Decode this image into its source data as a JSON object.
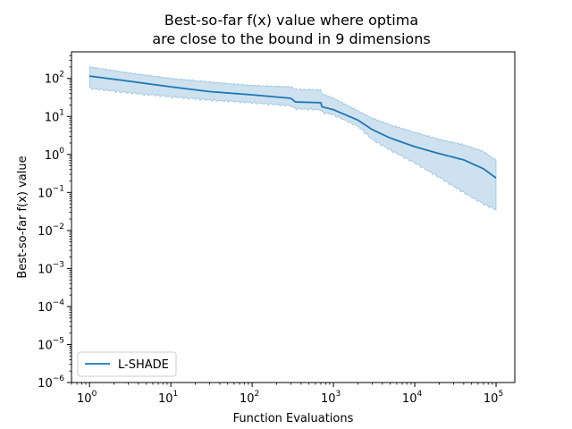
{
  "chart_data": {
    "type": "line",
    "title": [
      "Best-so-far f(x) value where optima",
      "are close to the bound in 9 dimensions"
    ],
    "xlabel": "Function Evaluations",
    "ylabel": "Best-so-far f(x) value",
    "xscale": "log",
    "yscale": "log",
    "xlim": [
      0.6,
      170000
    ],
    "ylim": [
      1e-06,
      500
    ],
    "x_ticks": [
      {
        "value": 1,
        "base": "10",
        "exp": "0"
      },
      {
        "value": 10,
        "base": "10",
        "exp": "1"
      },
      {
        "value": 100,
        "base": "10",
        "exp": "2"
      },
      {
        "value": 1000,
        "base": "10",
        "exp": "3"
      },
      {
        "value": 10000,
        "base": "10",
        "exp": "4"
      },
      {
        "value": 100000,
        "base": "10",
        "exp": "5"
      }
    ],
    "y_ticks": [
      {
        "value": 100,
        "base": "10",
        "exp": "2"
      },
      {
        "value": 10,
        "base": "10",
        "exp": "1"
      },
      {
        "value": 1,
        "base": "10",
        "exp": "0"
      },
      {
        "value": 0.1,
        "base": "10",
        "exp": "−1"
      },
      {
        "value": 0.01,
        "base": "10",
        "exp": "−2"
      },
      {
        "value": 0.001,
        "base": "10",
        "exp": "−3"
      },
      {
        "value": 0.0001,
        "base": "10",
        "exp": "−4"
      },
      {
        "value": 1e-05,
        "base": "10",
        "exp": "−5"
      },
      {
        "value": 1e-06,
        "base": "10",
        "exp": "−6"
      }
    ],
    "legend": {
      "placement": "lower-left",
      "entries": [
        "L-SHADE"
      ]
    },
    "grid": false,
    "series": [
      {
        "name": "L-SHADE",
        "color": "#1f77b4",
        "band_color": "#1f77b4",
        "x": [
          1,
          3,
          10,
          30,
          100,
          300,
          340,
          700,
          720,
          1000,
          2000,
          3000,
          5000,
          10000,
          20000,
          40000,
          70000,
          100000
        ],
        "y": [
          115,
          85,
          60,
          45,
          37,
          30,
          24,
          23,
          18,
          15,
          8,
          4.5,
          2.7,
          1.6,
          1.05,
          0.72,
          0.42,
          0.24
        ],
        "lower": [
          55,
          42,
          33,
          27,
          23,
          19,
          16,
          15,
          13,
          11,
          5.5,
          2.5,
          1.3,
          0.6,
          0.25,
          0.1,
          0.05,
          0.035
        ],
        "upper": [
          200,
          140,
          100,
          80,
          65,
          60,
          52,
          50,
          40,
          30,
          14,
          9,
          6,
          3.8,
          2.5,
          1.8,
          1.2,
          0.7
        ]
      }
    ]
  }
}
